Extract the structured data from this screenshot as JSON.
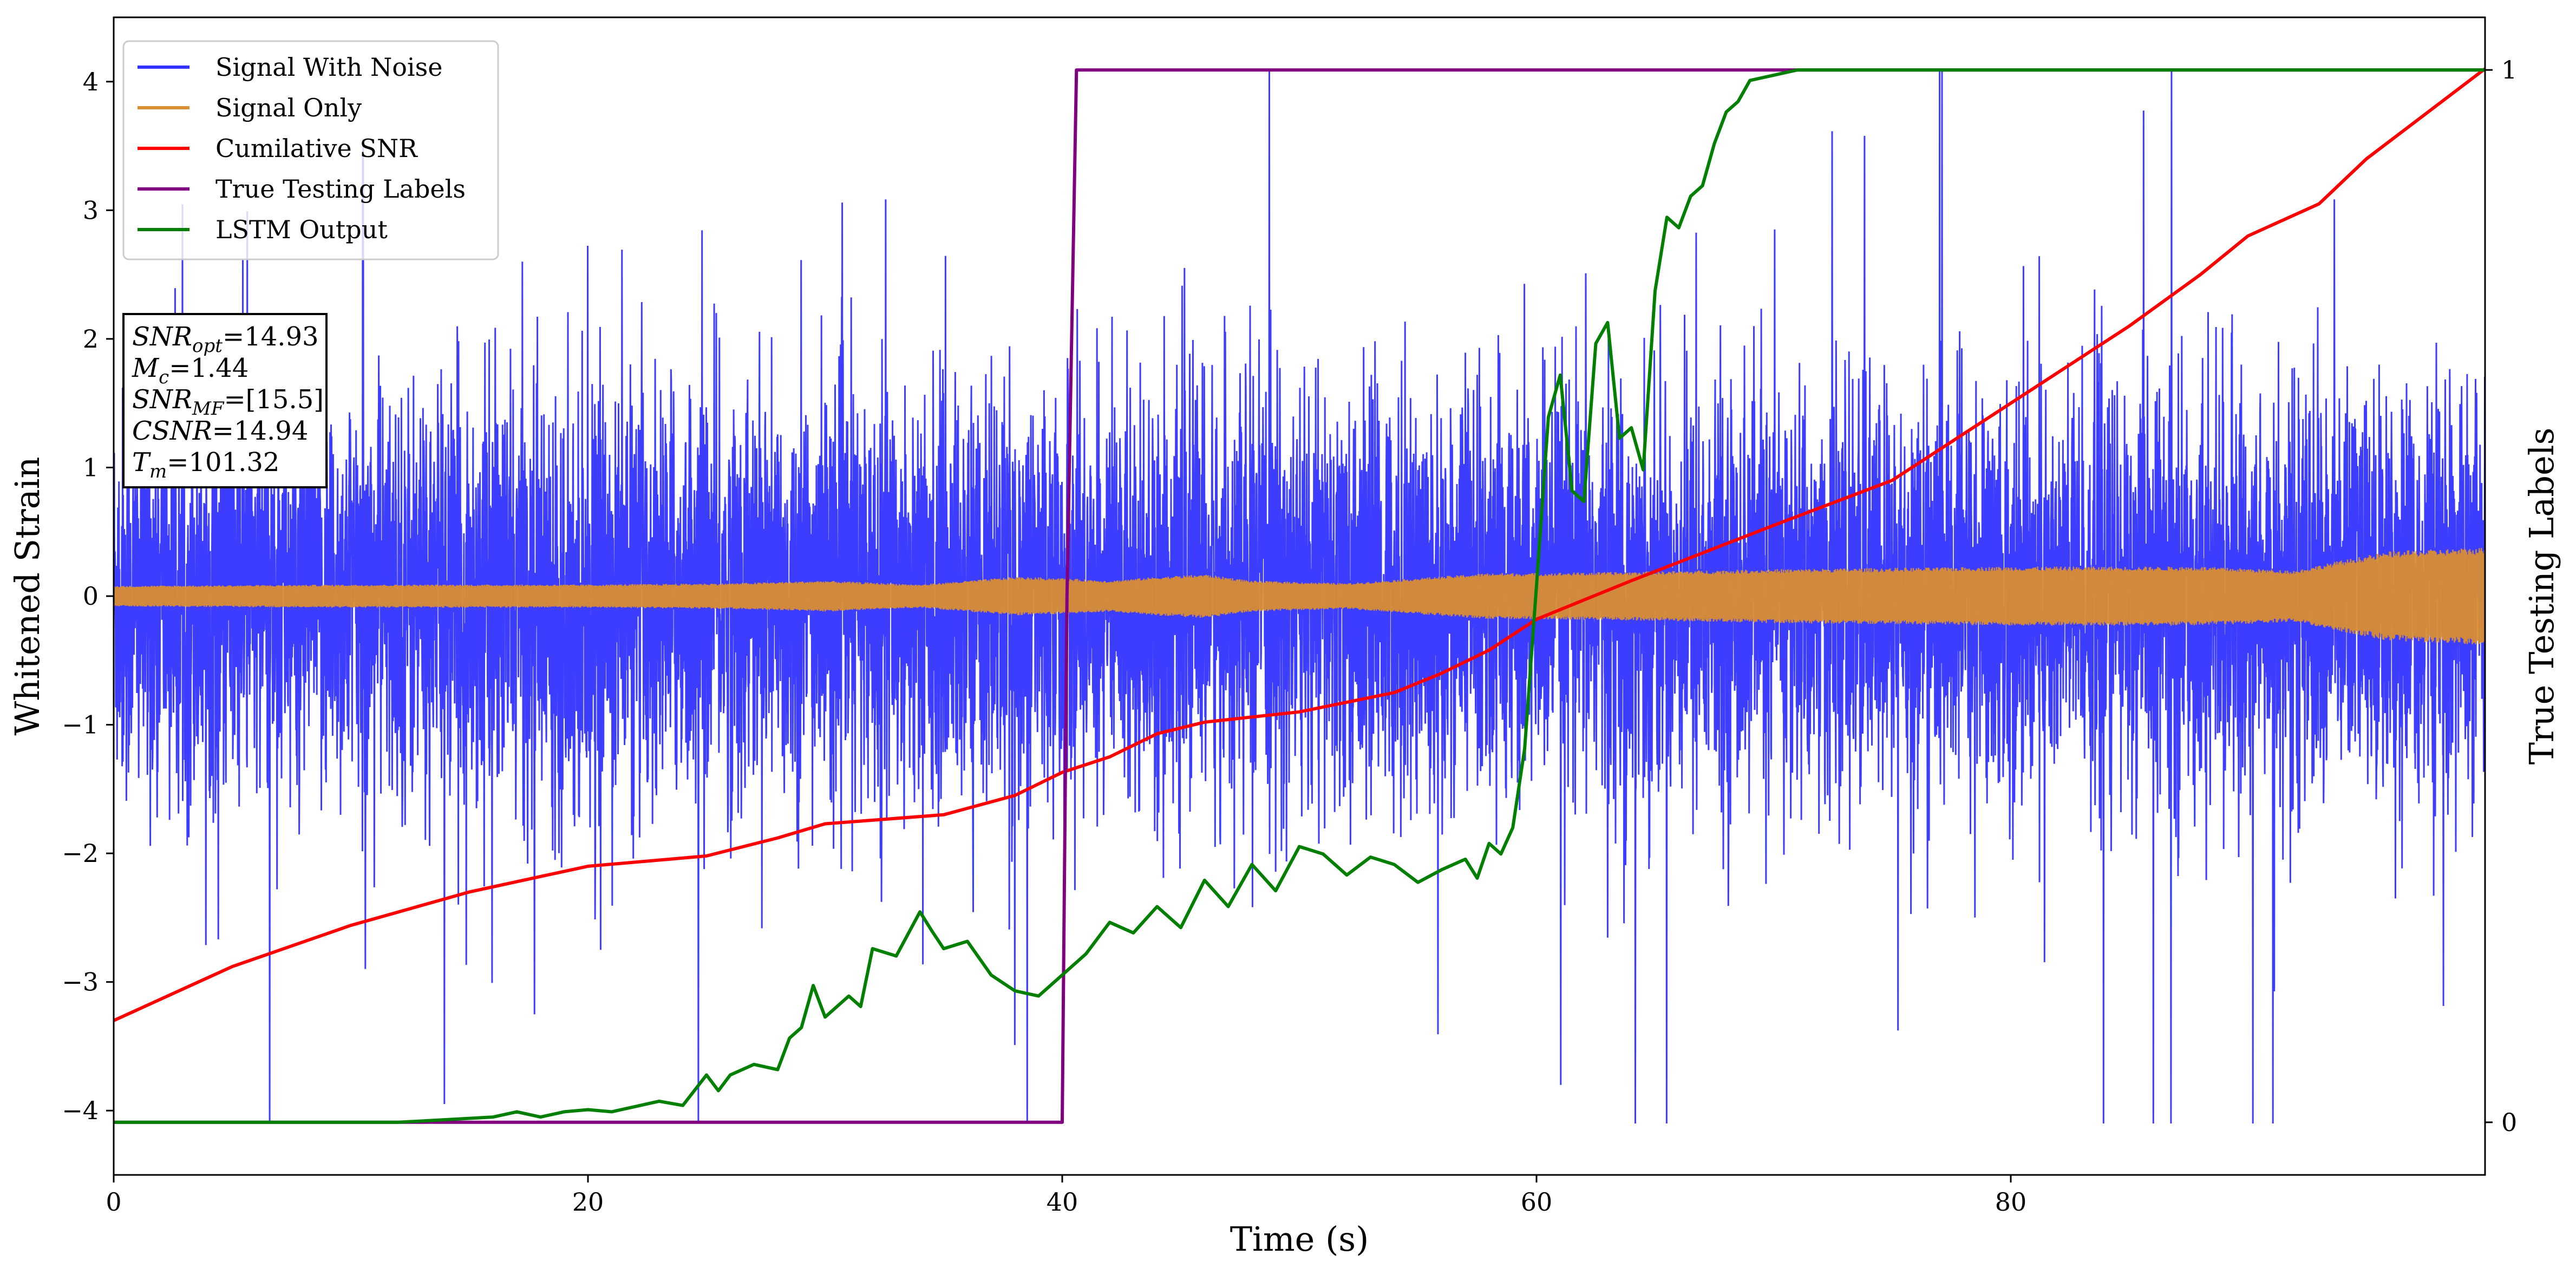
{
  "chart_data": {
    "type": "line",
    "xlabel": "Time (s)",
    "ylabel": "Whitened Strain",
    "y2label": "True Testing Labels",
    "xlim": [
      0,
      100
    ],
    "ylim": [
      -4.5,
      4.5
    ],
    "y2lim": [
      -0.05,
      1.05
    ],
    "xticks": [
      "0",
      "20",
      "40",
      "60",
      "80"
    ],
    "xtick_values": [
      0,
      20,
      40,
      60,
      80
    ],
    "yticks": [
      "−4",
      "−3",
      "−2",
      "−1",
      "0",
      "1",
      "2",
      "3",
      "4"
    ],
    "ytick_values": [
      -4,
      -3,
      -2,
      -1,
      0,
      1,
      2,
      3,
      4
    ],
    "y2ticks": [
      "0",
      "1"
    ],
    "y2tick_values": [
      0,
      1
    ],
    "grid": false,
    "legend_position": "top-left",
    "series": [
      {
        "name": "Signal With Noise",
        "color": "#3333ff",
        "kind": "noise-band",
        "x_range": [
          0,
          100
        ],
        "typical_amplitude": 0.8,
        "peak_amplitude": 4.1
      },
      {
        "name": "Signal Only",
        "color": "#d98e33",
        "kind": "envelope",
        "x": [
          0,
          10,
          20,
          26,
          28,
          30,
          34,
          36,
          38,
          40,
          42,
          44,
          46,
          48,
          52,
          55,
          58,
          60,
          64,
          70,
          80,
          88,
          92,
          94,
          96,
          100
        ],
        "amplitude": [
          0.08,
          0.09,
          0.09,
          0.1,
          0.11,
          0.12,
          0.09,
          0.12,
          0.15,
          0.14,
          0.12,
          0.15,
          0.17,
          0.12,
          0.1,
          0.14,
          0.18,
          0.18,
          0.19,
          0.21,
          0.23,
          0.23,
          0.2,
          0.28,
          0.35,
          0.38
        ]
      },
      {
        "name": "Cumilative SNR",
        "color": "#ff0000",
        "axis": "left",
        "x": [
          0,
          5,
          10,
          15,
          20,
          25,
          28,
          30,
          35,
          38,
          40,
          42,
          44,
          46,
          50,
          54,
          56,
          58,
          60,
          64,
          70,
          75,
          80,
          85,
          88,
          90,
          93,
          95,
          100
        ],
        "y": [
          -3.3,
          -2.88,
          -2.56,
          -2.3,
          -2.1,
          -2.02,
          -1.88,
          -1.77,
          -1.7,
          -1.55,
          -1.37,
          -1.25,
          -1.07,
          -0.98,
          -0.9,
          -0.75,
          -0.6,
          -0.42,
          -0.18,
          0.12,
          0.55,
          0.9,
          1.5,
          2.1,
          2.5,
          2.8,
          3.05,
          3.4,
          4.1
        ]
      },
      {
        "name": "True Testing Labels",
        "color": "#800080",
        "axis": "right",
        "x": [
          0,
          40,
          40.2,
          40.6,
          100
        ],
        "y": [
          0,
          0,
          0.5,
          1,
          1
        ]
      },
      {
        "name": "LSTM Output",
        "color": "#007f00",
        "axis": "right",
        "x": [
          0,
          12,
          16,
          17,
          18,
          19,
          20,
          21,
          22,
          23,
          24,
          25,
          25.5,
          26,
          27,
          28,
          28.5,
          29,
          29.5,
          30,
          31,
          31.5,
          32,
          33,
          34,
          34.5,
          35,
          36,
          37,
          38,
          39,
          40,
          40.5,
          41,
          42,
          43,
          44,
          45,
          46,
          47,
          48,
          49,
          50,
          51,
          52,
          53,
          54,
          55,
          56,
          57,
          57.5,
          58,
          58.5,
          59,
          59.5,
          60,
          60.5,
          61,
          61.5,
          62,
          62.5,
          63,
          63.5,
          64,
          64.5,
          65,
          65.5,
          66,
          66.5,
          67,
          67.5,
          68,
          68.5,
          69,
          70,
          71,
          72,
          74,
          80,
          100
        ],
        "y": [
          0,
          0,
          0.005,
          0.01,
          0.005,
          0.01,
          0.012,
          0.01,
          0.015,
          0.02,
          0.016,
          0.045,
          0.03,
          0.045,
          0.055,
          0.05,
          0.08,
          0.09,
          0.13,
          0.1,
          0.12,
          0.11,
          0.165,
          0.158,
          0.2,
          0.182,
          0.165,
          0.172,
          0.14,
          0.125,
          0.12,
          0.14,
          0.15,
          0.16,
          0.19,
          0.18,
          0.205,
          0.185,
          0.23,
          0.205,
          0.245,
          0.22,
          0.262,
          0.255,
          0.235,
          0.252,
          0.245,
          0.228,
          0.24,
          0.25,
          0.232,
          0.265,
          0.255,
          0.28,
          0.355,
          0.51,
          0.67,
          0.71,
          0.6,
          0.59,
          0.74,
          0.76,
          0.65,
          0.66,
          0.62,
          0.79,
          0.86,
          0.85,
          0.88,
          0.89,
          0.93,
          0.96,
          0.97,
          0.99,
          0.995,
          1.0,
          1.0,
          1.0,
          1.0,
          1.0
        ]
      }
    ]
  },
  "info_box": {
    "lines": [
      {
        "main": "SNR",
        "sub": "opt",
        "value": "=14.93"
      },
      {
        "main": "M",
        "sub": "c",
        "value": "=1.44"
      },
      {
        "main": "SNR",
        "sub": "MF",
        "value": "=[15.5]"
      },
      {
        "main": "CSNR",
        "sub": "",
        "value": "=14.94"
      },
      {
        "main": "T",
        "sub": "m",
        "value": "=101.32"
      }
    ]
  }
}
